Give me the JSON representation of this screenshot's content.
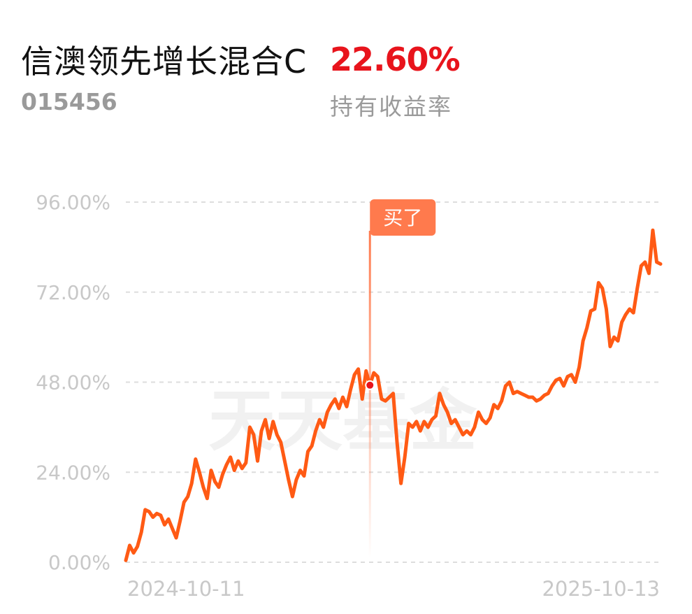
{
  "fund": {
    "name": "信澳领先增长混合C",
    "code": "015456"
  },
  "holding": {
    "return_value": "22.60%",
    "return_label": "持有收益率"
  },
  "colors": {
    "line": "#ff5a14",
    "positive": "#e8141c",
    "buy_badge": "#ff7a4d",
    "grid": "#dddddd"
  },
  "chart_data": {
    "type": "line",
    "x_start_label": "2024-10-11",
    "x_end_label": "2025-10-13",
    "y_ticks": [
      "96.00%",
      "72.00%",
      "48.00%",
      "24.00%",
      "0.00%"
    ],
    "y_tick_values": [
      96,
      72,
      48,
      24,
      0
    ],
    "ylim": [
      0,
      96
    ],
    "grid": true,
    "watermark": "天天基金",
    "buy_marker": {
      "label": "买了",
      "index": 63,
      "value": 47.2
    },
    "series": [
      {
        "values": [
          0.5,
          4.5,
          2.5,
          4.2,
          8,
          14,
          13.5,
          12,
          13,
          12.5,
          10,
          11.5,
          9,
          6.5,
          11,
          16,
          17.5,
          21,
          27.5,
          24,
          20,
          17,
          24.5,
          21.5,
          20,
          23.5,
          26,
          28,
          24.5,
          27,
          25,
          26.5,
          36,
          34,
          27,
          35,
          38,
          33,
          37.5,
          34,
          32,
          27,
          22,
          17.5,
          22,
          24.5,
          23,
          29.5,
          31,
          35,
          38,
          36,
          40,
          42,
          43.5,
          41,
          44,
          41.5,
          46,
          50,
          51.5,
          43.5,
          51,
          47.2,
          50.5,
          49.5,
          43.5,
          43,
          44,
          45,
          32,
          21,
          28,
          37,
          36,
          37.5,
          35,
          37.5,
          36,
          38,
          39,
          45,
          42,
          40,
          37,
          38,
          36,
          34,
          35,
          34,
          36,
          40,
          38,
          37,
          38.5,
          42,
          41,
          43,
          47,
          48,
          45,
          45.5,
          45,
          44.5,
          44,
          44,
          43,
          43.5,
          44.5,
          45,
          47,
          48.5,
          49,
          47,
          49.5,
          50,
          48,
          52,
          59,
          62.5,
          67,
          67.5,
          74.5,
          73,
          67.5,
          57.5,
          60,
          59,
          64,
          66,
          67.5,
          66.5,
          73,
          79,
          80,
          77,
          88.5,
          80,
          79.5
        ]
      }
    ]
  }
}
